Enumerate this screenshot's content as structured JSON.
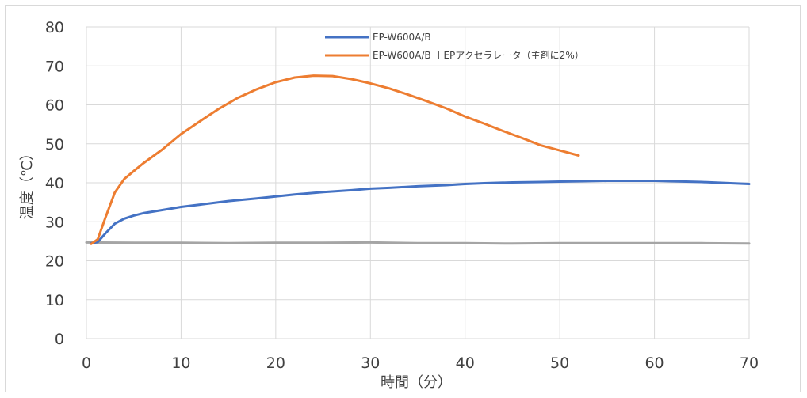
{
  "chart_data": {
    "type": "line",
    "xlabel": "時間（分）",
    "ylabel": "温度（℃）",
    "xlim": [
      0,
      70
    ],
    "ylim": [
      0,
      80
    ],
    "xticks": [
      0,
      10,
      20,
      30,
      40,
      50,
      60,
      70
    ],
    "yticks": [
      0,
      10,
      20,
      30,
      40,
      50,
      60,
      70,
      80
    ],
    "grid": true,
    "legend_position": "top-center",
    "series": [
      {
        "name": "EP-W600A/B",
        "color": "#4472c4",
        "x": [
          0.5,
          1.2,
          2,
          3,
          4,
          5,
          6,
          8,
          10,
          12,
          15,
          18,
          20,
          22,
          25,
          28,
          30,
          32,
          35,
          38,
          40,
          42,
          45,
          48,
          50,
          55,
          60,
          65,
          70
        ],
        "y": [
          24.5,
          24.8,
          27.0,
          29.5,
          30.8,
          31.6,
          32.2,
          33.0,
          33.8,
          34.4,
          35.3,
          36.0,
          36.5,
          37.0,
          37.6,
          38.1,
          38.5,
          38.7,
          39.1,
          39.4,
          39.7,
          39.9,
          40.1,
          40.2,
          40.3,
          40.5,
          40.5,
          40.2,
          39.7
        ]
      },
      {
        "name": "EP-W600A/B ＋EPアクセラレータ（主剤に2%）",
        "color": "#ed7d31",
        "x": [
          0.5,
          1.2,
          2,
          3,
          4,
          5,
          6,
          8,
          10,
          12,
          14,
          16,
          18,
          20,
          22,
          24,
          26,
          28,
          30,
          32,
          34,
          36,
          38,
          40,
          42,
          44,
          46,
          48,
          50,
          52
        ],
        "y": [
          24.3,
          25.5,
          31.0,
          37.5,
          41.0,
          43.0,
          45.0,
          48.5,
          52.5,
          55.8,
          59.0,
          61.8,
          64.0,
          65.8,
          67.0,
          67.5,
          67.4,
          66.6,
          65.5,
          64.2,
          62.6,
          60.9,
          59.1,
          57.0,
          55.2,
          53.3,
          51.5,
          49.6,
          48.3,
          47.0
        ]
      },
      {
        "name": "",
        "color": "#a5a5a5",
        "x": [
          0,
          5,
          10,
          15,
          20,
          25,
          30,
          35,
          40,
          45,
          50,
          55,
          60,
          65,
          70
        ],
        "y": [
          24.7,
          24.6,
          24.6,
          24.5,
          24.6,
          24.6,
          24.7,
          24.5,
          24.5,
          24.4,
          24.5,
          24.5,
          24.5,
          24.5,
          24.4
        ]
      }
    ]
  }
}
